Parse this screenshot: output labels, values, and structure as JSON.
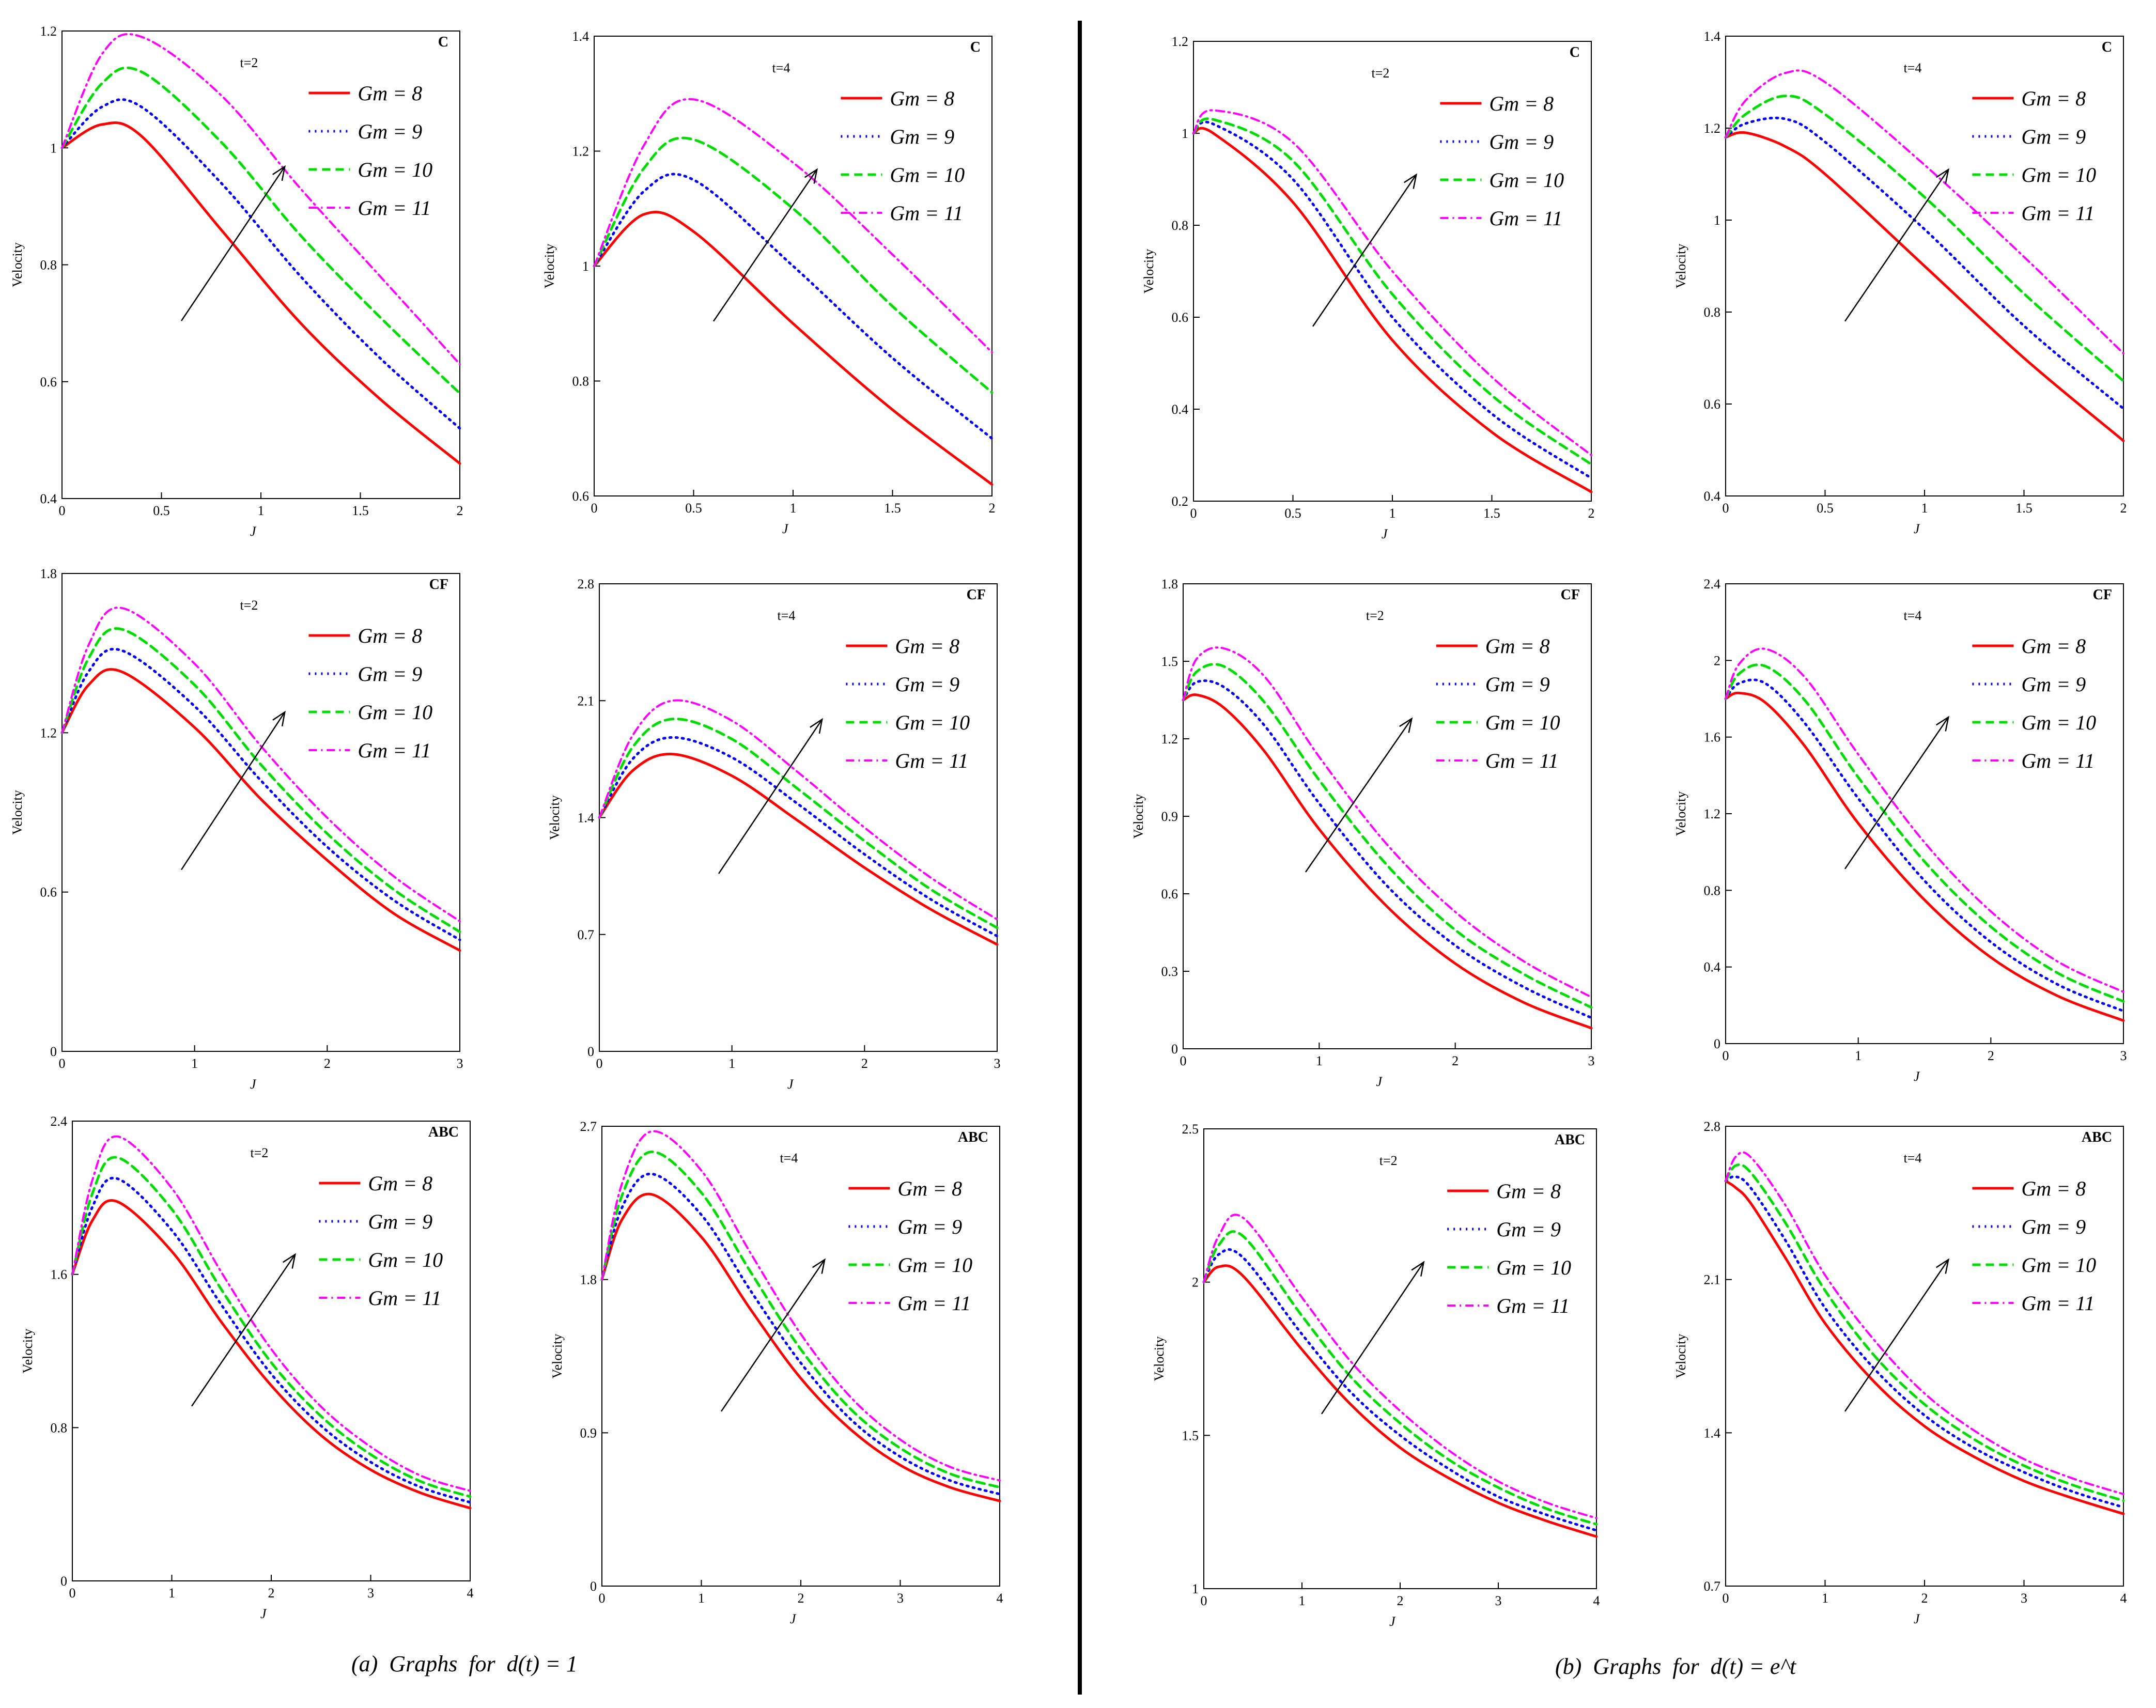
{
  "captions": {
    "left": "(a)  Graphs  for  d(t) = 1",
    "right": "(b)  Graphs  for  d(t) = e^t"
  },
  "colors": {
    "gm8": "#ff0000",
    "gm9": "#0000ff",
    "gm10": "#00dd00",
    "gm11": "#ff00ff"
  },
  "legend_labels": [
    "Gm = 8",
    "Gm = 9",
    "Gm = 10",
    "Gm = 11"
  ],
  "chart_data": [
    {
      "type": "line",
      "id": "a-C-t2",
      "title": "C",
      "annotation": "t=2",
      "xlabel": "J",
      "ylabel": "Velocity",
      "xlim": [
        0,
        2
      ],
      "ylim": [
        0.4,
        1.2
      ],
      "xticks": [
        "0",
        "0.5",
        "1",
        "1.5",
        "2"
      ],
      "yticks": [
        "0.4",
        "0.6",
        "0.8",
        "1",
        "1.2"
      ],
      "x": [
        0,
        0.2,
        0.4,
        0.8,
        1.2,
        1.6,
        2.0
      ],
      "series": [
        {
          "name": "Gm = 8",
          "values": [
            1.0,
            1.04,
            1.02,
            0.86,
            0.7,
            0.57,
            0.46
          ]
        },
        {
          "name": "Gm = 9",
          "values": [
            1.0,
            1.07,
            1.07,
            0.94,
            0.78,
            0.64,
            0.52
          ]
        },
        {
          "name": "Gm = 10",
          "values": [
            1.0,
            1.11,
            1.13,
            1.01,
            0.85,
            0.71,
            0.58
          ]
        },
        {
          "name": "Gm = 11",
          "values": [
            1.0,
            1.16,
            1.19,
            1.09,
            0.93,
            0.78,
            0.63
          ]
        }
      ]
    },
    {
      "type": "line",
      "id": "a-C-t4",
      "title": "C",
      "annotation": "t=4",
      "xlabel": "J",
      "ylabel": "Velocity",
      "xlim": [
        0,
        2
      ],
      "ylim": [
        0.6,
        1.4
      ],
      "xticks": [
        "0",
        "0.5",
        "1",
        "1.5",
        "2"
      ],
      "yticks": [
        "0.6",
        "0.8",
        "1",
        "1.2",
        "1.4"
      ],
      "x": [
        0,
        0.25,
        0.5,
        1.0,
        1.5,
        2.0
      ],
      "series": [
        {
          "name": "Gm = 8",
          "values": [
            1.0,
            1.09,
            1.06,
            0.9,
            0.75,
            0.62
          ]
        },
        {
          "name": "Gm = 9",
          "values": [
            1.0,
            1.13,
            1.15,
            1.0,
            0.84,
            0.7
          ]
        },
        {
          "name": "Gm = 10",
          "values": [
            1.0,
            1.17,
            1.22,
            1.1,
            0.93,
            0.78
          ]
        },
        {
          "name": "Gm = 11",
          "values": [
            1.0,
            1.21,
            1.29,
            1.18,
            1.02,
            0.85
          ]
        }
      ]
    },
    {
      "type": "line",
      "id": "b-C-t2",
      "title": "C",
      "annotation": "t=2",
      "xlabel": "J",
      "ylabel": "Velocity",
      "xlim": [
        0,
        2
      ],
      "ylim": [
        0.2,
        1.2
      ],
      "xticks": [
        "0",
        "0.5",
        "1",
        "1.5",
        "2"
      ],
      "yticks": [
        "0.2",
        "0.4",
        "0.6",
        "0.8",
        "1",
        "1.2"
      ],
      "x": [
        0,
        0.1,
        0.5,
        1.0,
        1.5,
        2.0
      ],
      "series": [
        {
          "name": "Gm = 8",
          "values": [
            1.0,
            1.0,
            0.85,
            0.55,
            0.35,
            0.22
          ]
        },
        {
          "name": "Gm = 9",
          "values": [
            1.0,
            1.02,
            0.9,
            0.6,
            0.39,
            0.25
          ]
        },
        {
          "name": "Gm = 10",
          "values": [
            1.0,
            1.03,
            0.94,
            0.65,
            0.43,
            0.28
          ]
        },
        {
          "name": "Gm = 11",
          "values": [
            1.0,
            1.05,
            0.98,
            0.7,
            0.47,
            0.3
          ]
        }
      ]
    },
    {
      "type": "line",
      "id": "b-C-t4",
      "title": "C",
      "annotation": "t=4",
      "xlabel": "J",
      "ylabel": "Velocity",
      "xlim": [
        0,
        2
      ],
      "ylim": [
        0.4,
        1.4
      ],
      "xticks": [
        "0",
        "0.5",
        "1",
        "1.5",
        "2"
      ],
      "yticks": [
        "0.4",
        "0.6",
        "0.8",
        "1",
        "1.2",
        "1.4"
      ],
      "x": [
        0,
        0.1,
        0.3,
        0.5,
        1.0,
        1.5,
        2.0
      ],
      "series": [
        {
          "name": "Gm = 8",
          "values": [
            1.18,
            1.19,
            1.16,
            1.1,
            0.9,
            0.7,
            0.52
          ]
        },
        {
          "name": "Gm = 9",
          "values": [
            1.18,
            1.21,
            1.22,
            1.17,
            0.98,
            0.77,
            0.59
          ]
        },
        {
          "name": "Gm = 10",
          "values": [
            1.18,
            1.23,
            1.27,
            1.23,
            1.05,
            0.84,
            0.65
          ]
        },
        {
          "name": "Gm = 11",
          "values": [
            1.18,
            1.26,
            1.32,
            1.3,
            1.12,
            0.92,
            0.71
          ]
        }
      ]
    },
    {
      "type": "line",
      "id": "a-CF-t2",
      "title": "CF",
      "annotation": "t=2",
      "xlabel": "J",
      "ylabel": "Velocity",
      "xlim": [
        0,
        3
      ],
      "ylim": [
        0,
        1.8
      ],
      "xticks": [
        "0",
        "1",
        "2",
        "3"
      ],
      "yticks": [
        "0",
        "0.6",
        "1.2",
        "1.8"
      ],
      "x": [
        0,
        0.2,
        0.45,
        1.0,
        1.5,
        2.0,
        2.5,
        3.0
      ],
      "series": [
        {
          "name": "Gm = 8",
          "values": [
            1.2,
            1.38,
            1.43,
            1.22,
            0.95,
            0.72,
            0.52,
            0.38
          ]
        },
        {
          "name": "Gm = 9",
          "values": [
            1.2,
            1.43,
            1.51,
            1.3,
            1.02,
            0.77,
            0.57,
            0.42
          ]
        },
        {
          "name": "Gm = 10",
          "values": [
            1.2,
            1.48,
            1.59,
            1.38,
            1.08,
            0.82,
            0.61,
            0.45
          ]
        },
        {
          "name": "Gm = 11",
          "values": [
            1.2,
            1.53,
            1.67,
            1.46,
            1.15,
            0.88,
            0.66,
            0.49
          ]
        }
      ]
    },
    {
      "type": "line",
      "id": "a-CF-t4",
      "title": "CF",
      "annotation": "t=4",
      "xlabel": "J",
      "ylabel": "Velocity",
      "xlim": [
        0,
        3
      ],
      "ylim": [
        0,
        2.8
      ],
      "xticks": [
        "0",
        "1",
        "2",
        "3"
      ],
      "yticks": [
        "0",
        "0.7",
        "1.4",
        "2.1",
        "2.8"
      ],
      "x": [
        0,
        0.25,
        0.55,
        1.0,
        1.5,
        2.0,
        2.5,
        3.0
      ],
      "series": [
        {
          "name": "Gm = 8",
          "values": [
            1.4,
            1.68,
            1.78,
            1.65,
            1.38,
            1.1,
            0.85,
            0.64
          ]
        },
        {
          "name": "Gm = 9",
          "values": [
            1.4,
            1.75,
            1.88,
            1.76,
            1.48,
            1.18,
            0.91,
            0.69
          ]
        },
        {
          "name": "Gm = 10",
          "values": [
            1.4,
            1.82,
            1.99,
            1.87,
            1.57,
            1.26,
            0.97,
            0.74
          ]
        },
        {
          "name": "Gm = 11",
          "values": [
            1.4,
            1.89,
            2.1,
            1.98,
            1.67,
            1.34,
            1.04,
            0.79
          ]
        }
      ]
    },
    {
      "type": "line",
      "id": "b-CF-t2",
      "title": "CF",
      "annotation": "t=2",
      "xlabel": "J",
      "ylabel": "Velocity",
      "xlim": [
        0,
        3
      ],
      "ylim": [
        0,
        1.8
      ],
      "xticks": [
        "0",
        "1",
        "2",
        "3"
      ],
      "yticks": [
        "0",
        "0.3",
        "0.6",
        "0.9",
        "1.2",
        "1.5",
        "1.8"
      ],
      "x": [
        0,
        0.1,
        0.3,
        0.6,
        1.0,
        1.5,
        2.0,
        2.5,
        3.0
      ],
      "series": [
        {
          "name": "Gm = 8",
          "values": [
            1.35,
            1.37,
            1.32,
            1.15,
            0.85,
            0.55,
            0.33,
            0.18,
            0.08
          ]
        },
        {
          "name": "Gm = 9",
          "values": [
            1.35,
            1.42,
            1.4,
            1.25,
            0.95,
            0.63,
            0.4,
            0.24,
            0.12
          ]
        },
        {
          "name": "Gm = 10",
          "values": [
            1.35,
            1.46,
            1.48,
            1.34,
            1.04,
            0.71,
            0.46,
            0.29,
            0.16
          ]
        },
        {
          "name": "Gm = 11",
          "values": [
            1.35,
            1.51,
            1.55,
            1.44,
            1.13,
            0.79,
            0.53,
            0.34,
            0.2
          ]
        }
      ]
    },
    {
      "type": "line",
      "id": "b-CF-t4",
      "title": "CF",
      "annotation": "t=4",
      "xlabel": "J",
      "ylabel": "Velocity",
      "xlim": [
        0,
        3
      ],
      "ylim": [
        0,
        2.4
      ],
      "xticks": [
        "0",
        "1",
        "2",
        "3"
      ],
      "yticks": [
        "0",
        "0.4",
        "0.8",
        "1.2",
        "1.6",
        "2",
        "2.4"
      ],
      "x": [
        0,
        0.1,
        0.3,
        0.6,
        1.0,
        1.5,
        2.0,
        2.5,
        3.0
      ],
      "series": [
        {
          "name": "Gm = 8",
          "values": [
            1.8,
            1.83,
            1.78,
            1.55,
            1.15,
            0.75,
            0.45,
            0.25,
            0.12
          ]
        },
        {
          "name": "Gm = 9",
          "values": [
            1.8,
            1.88,
            1.88,
            1.67,
            1.28,
            0.85,
            0.53,
            0.31,
            0.17
          ]
        },
        {
          "name": "Gm = 10",
          "values": [
            1.8,
            1.93,
            1.97,
            1.79,
            1.39,
            0.95,
            0.61,
            0.37,
            0.22
          ]
        },
        {
          "name": "Gm = 11",
          "values": [
            1.8,
            1.98,
            2.06,
            1.91,
            1.51,
            1.05,
            0.69,
            0.43,
            0.27
          ]
        }
      ]
    },
    {
      "type": "line",
      "id": "a-ABC-t2",
      "title": "ABC",
      "annotation": "t=2",
      "xlabel": "J",
      "ylabel": "Velocity",
      "xlim": [
        0,
        4
      ],
      "ylim": [
        0,
        2.4
      ],
      "xticks": [
        "0",
        "1",
        "2",
        "3",
        "4"
      ],
      "yticks": [
        "0",
        "0.8",
        "1.6",
        "2.4"
      ],
      "x": [
        0,
        0.2,
        0.45,
        1.0,
        1.5,
        2.0,
        2.5,
        3.0,
        3.5,
        4.0
      ],
      "series": [
        {
          "name": "Gm = 8",
          "values": [
            1.6,
            1.88,
            1.98,
            1.72,
            1.35,
            1.02,
            0.76,
            0.58,
            0.46,
            0.38
          ]
        },
        {
          "name": "Gm = 9",
          "values": [
            1.6,
            1.95,
            2.1,
            1.83,
            1.44,
            1.08,
            0.81,
            0.62,
            0.49,
            0.41
          ]
        },
        {
          "name": "Gm = 10",
          "values": [
            1.6,
            2.02,
            2.21,
            1.94,
            1.52,
            1.14,
            0.86,
            0.66,
            0.52,
            0.44
          ]
        },
        {
          "name": "Gm = 11",
          "values": [
            1.6,
            2.09,
            2.32,
            2.05,
            1.61,
            1.21,
            0.91,
            0.7,
            0.55,
            0.47
          ]
        }
      ]
    },
    {
      "type": "line",
      "id": "a-ABC-t4",
      "title": "ABC",
      "annotation": "t=4",
      "xlabel": "J",
      "ylabel": "Velocity",
      "xlim": [
        0,
        4
      ],
      "ylim": [
        0,
        2.7
      ],
      "xticks": [
        "0",
        "1",
        "2",
        "3",
        "4"
      ],
      "yticks": [
        "0",
        "0.9",
        "1.8",
        "2.7"
      ],
      "x": [
        0,
        0.2,
        0.5,
        1.0,
        1.5,
        2.0,
        2.5,
        3.0,
        3.5,
        4.0
      ],
      "series": [
        {
          "name": "Gm = 8",
          "values": [
            1.8,
            2.15,
            2.3,
            2.05,
            1.62,
            1.22,
            0.92,
            0.71,
            0.58,
            0.5
          ]
        },
        {
          "name": "Gm = 9",
          "values": [
            1.8,
            2.22,
            2.42,
            2.18,
            1.73,
            1.31,
            0.98,
            0.76,
            0.62,
            0.54
          ]
        },
        {
          "name": "Gm = 10",
          "values": [
            1.8,
            2.29,
            2.55,
            2.31,
            1.84,
            1.39,
            1.04,
            0.81,
            0.66,
            0.58
          ]
        },
        {
          "name": "Gm = 11",
          "values": [
            1.8,
            2.36,
            2.67,
            2.44,
            1.95,
            1.48,
            1.11,
            0.86,
            0.7,
            0.62
          ]
        }
      ]
    },
    {
      "type": "line",
      "id": "b-ABC-t2",
      "title": "ABC",
      "annotation": "t=2",
      "xlabel": "J",
      "ylabel": "Velocity",
      "xlim": [
        0,
        4
      ],
      "ylim": [
        1,
        2.5
      ],
      "xticks": [
        "0",
        "1",
        "2",
        "3",
        "4"
      ],
      "yticks": [
        "1",
        "1.5",
        "2",
        "2.5"
      ],
      "x": [
        0,
        0.15,
        0.4,
        1.0,
        1.5,
        2.0,
        2.5,
        3.0,
        3.5,
        4.0
      ],
      "series": [
        {
          "name": "Gm = 8",
          "values": [
            2.0,
            2.05,
            2.02,
            1.78,
            1.6,
            1.46,
            1.36,
            1.28,
            1.22,
            1.17
          ]
        },
        {
          "name": "Gm = 9",
          "values": [
            2.0,
            2.09,
            2.08,
            1.83,
            1.64,
            1.5,
            1.39,
            1.3,
            1.24,
            1.19
          ]
        },
        {
          "name": "Gm = 10",
          "values": [
            2.0,
            2.12,
            2.15,
            1.89,
            1.69,
            1.54,
            1.42,
            1.33,
            1.26,
            1.21
          ]
        },
        {
          "name": "Gm = 11",
          "values": [
            2.0,
            2.15,
            2.21,
            1.95,
            1.74,
            1.58,
            1.45,
            1.35,
            1.28,
            1.23
          ]
        }
      ]
    },
    {
      "type": "line",
      "id": "b-ABC-t4",
      "title": "ABC",
      "annotation": "t=4",
      "xlabel": "J",
      "ylabel": "Velocity",
      "xlim": [
        0,
        4
      ],
      "ylim": [
        0.7,
        2.8
      ],
      "xticks": [
        "0",
        "1",
        "2",
        "3",
        "4"
      ],
      "yticks": [
        "0.7",
        "1.4",
        "2.1",
        "2.8"
      ],
      "x": [
        0,
        0.1,
        0.25,
        0.6,
        1.0,
        1.5,
        2.0,
        2.5,
        3.0,
        3.5,
        4.0
      ],
      "series": [
        {
          "name": "Gm = 8",
          "values": [
            2.55,
            2.52,
            2.45,
            2.2,
            1.9,
            1.63,
            1.43,
            1.29,
            1.18,
            1.1,
            1.03
          ]
        },
        {
          "name": "Gm = 9",
          "values": [
            2.55,
            2.57,
            2.52,
            2.28,
            1.97,
            1.69,
            1.48,
            1.33,
            1.22,
            1.13,
            1.06
          ]
        },
        {
          "name": "Gm = 10",
          "values": [
            2.55,
            2.62,
            2.59,
            2.36,
            2.05,
            1.75,
            1.53,
            1.37,
            1.25,
            1.16,
            1.09
          ]
        },
        {
          "name": "Gm = 11",
          "values": [
            2.55,
            2.66,
            2.66,
            2.44,
            2.12,
            1.82,
            1.58,
            1.41,
            1.28,
            1.19,
            1.12
          ]
        }
      ]
    }
  ]
}
